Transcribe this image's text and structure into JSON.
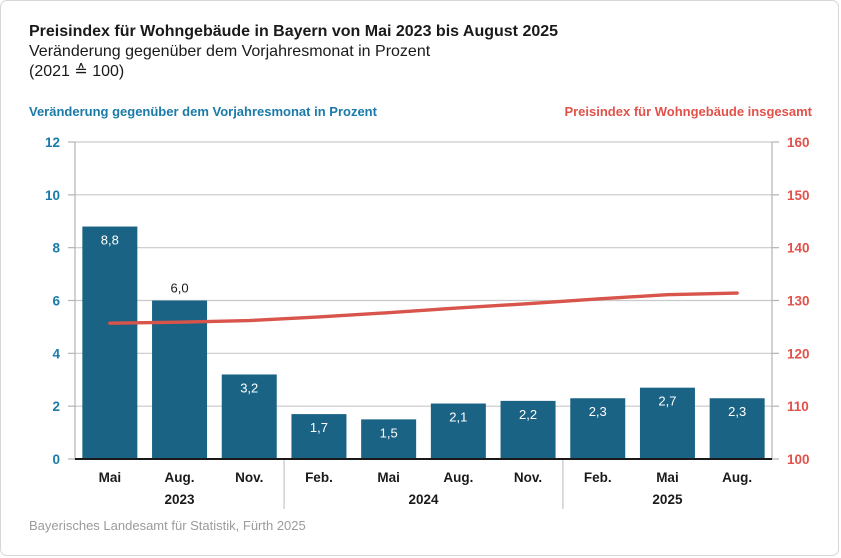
{
  "header": {
    "title": "Preisindex für Wohngebäude in Bayern von Mai 2023 bis August 2025",
    "subtitle": "Veränderung gegenüber dem Vorjahresmonat in Prozent",
    "base_note": "(2021 ≙ 100)"
  },
  "legend": {
    "left_label": "Veränderung gegenüber dem Vorjahresmonat in Prozent",
    "right_label": "Preisindex für Wohngebäude insgesamt"
  },
  "footer": {
    "source": "Bayerisches Landesamt für Statistik, Fürth 2025"
  },
  "colors": {
    "accent_blue": "#1a7aa8",
    "accent_red": "#e2514a",
    "bar_fill": "#1a6385",
    "line_stroke": "#d9544b",
    "grid": "#c9c9c9",
    "axis_gray": "#b3b3b3",
    "baseline": "#1a1a1a",
    "label_dark": "#1a1a1a",
    "label_light": "#ffffff",
    "separator": "#c4c4c4",
    "footer_gray": "#9b9b9b"
  },
  "chart_data": {
    "type": "bar+line",
    "title": "Preisindex für Wohngebäude in Bayern von Mai 2023 bis August 2025",
    "categories": [
      "Mai",
      "Aug.",
      "Nov.",
      "Feb.",
      "Mai",
      "Aug.",
      "Nov.",
      "Feb.",
      "Mai",
      "Aug."
    ],
    "year_groups": [
      {
        "label": "2023",
        "span": 3
      },
      {
        "label": "2024",
        "span": 4
      },
      {
        "label": "2025",
        "span": 3
      }
    ],
    "series": [
      {
        "name": "Veränderung gegenüber dem Vorjahresmonat in Prozent",
        "type": "bar",
        "axis": "left",
        "values": [
          8.8,
          6.0,
          3.2,
          1.7,
          1.5,
          2.1,
          2.2,
          2.3,
          2.7,
          2.3
        ],
        "value_labels": [
          "8,8",
          "6,0",
          "3,2",
          "1,7",
          "1,5",
          "2,1",
          "2,2",
          "2,3",
          "2,7",
          "2,3"
        ],
        "label_outside_indices": [
          1
        ]
      },
      {
        "name": "Preisindex für Wohngebäude insgesamt",
        "type": "line",
        "axis": "right",
        "values": [
          125.7,
          125.9,
          126.2,
          126.9,
          127.7,
          128.6,
          129.4,
          130.3,
          131.1,
          131.4
        ]
      }
    ],
    "left_axis": {
      "label": "Veränderung gegenüber dem Vorjahresmonat in Prozent",
      "min": 0,
      "max": 12,
      "ticks": [
        0,
        2,
        4,
        6,
        8,
        10,
        12
      ]
    },
    "right_axis": {
      "label": "Preisindex für Wohngebäude insgesamt",
      "min": 100,
      "max": 160,
      "ticks": [
        100,
        110,
        120,
        130,
        140,
        150,
        160
      ]
    },
    "grid": true,
    "legend_position": "top"
  }
}
